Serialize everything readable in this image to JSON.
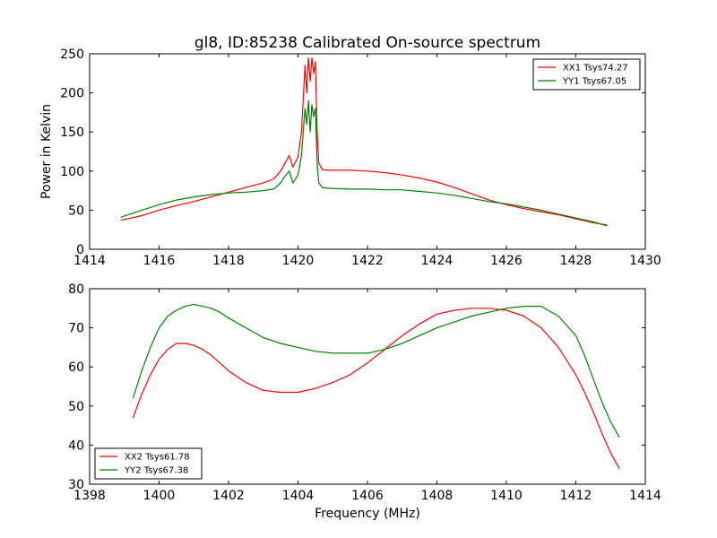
{
  "chart_data": [
    {
      "type": "line",
      "title": "gl8, ID:85238 Calibrated On-source spectrum",
      "xlabel": "",
      "ylabel": "Power in Kelvin",
      "xlim": [
        1414,
        1430
      ],
      "ylim": [
        0,
        250
      ],
      "xticks": [
        1414,
        1416,
        1418,
        1420,
        1422,
        1424,
        1426,
        1428,
        1430
      ],
      "yticks": [
        0,
        50,
        100,
        150,
        200,
        250
      ],
      "legend_position": "top-right",
      "series": [
        {
          "name": "XX1 Tsys74.27",
          "color": "#ff0000",
          "x": [
            1414.9,
            1415.5,
            1416.0,
            1416.5,
            1417.0,
            1417.5,
            1418.0,
            1418.5,
            1419.0,
            1419.3,
            1419.5,
            1419.6,
            1419.75,
            1419.85,
            1420.0,
            1420.1,
            1420.2,
            1420.25,
            1420.3,
            1420.35,
            1420.4,
            1420.45,
            1420.5,
            1420.55,
            1420.6,
            1420.7,
            1420.9,
            1421.5,
            1422.0,
            1422.5,
            1423.0,
            1423.5,
            1424.0,
            1424.5,
            1425.0,
            1425.5,
            1426.0,
            1426.5,
            1427.0,
            1427.5,
            1428.0,
            1428.5,
            1428.9
          ],
          "y": [
            37,
            43,
            50,
            56,
            61,
            67,
            73,
            79,
            85,
            90,
            100,
            108,
            120,
            105,
            118,
            150,
            235,
            200,
            245,
            215,
            245,
            225,
            240,
            150,
            110,
            102,
            101,
            101,
            100,
            98,
            95,
            91,
            86,
            79,
            71,
            63,
            57,
            52,
            48,
            44,
            39,
            34,
            31
          ]
        },
        {
          "name": "YY1 Tsys67.05",
          "color": "#008000",
          "x": [
            1414.9,
            1415.5,
            1416.0,
            1416.5,
            1417.0,
            1417.5,
            1418.0,
            1418.5,
            1419.0,
            1419.3,
            1419.5,
            1419.6,
            1419.75,
            1419.85,
            1420.0,
            1420.1,
            1420.2,
            1420.25,
            1420.3,
            1420.35,
            1420.4,
            1420.45,
            1420.5,
            1420.55,
            1420.6,
            1420.7,
            1420.9,
            1421.5,
            1422.0,
            1422.5,
            1423.0,
            1423.5,
            1424.0,
            1424.5,
            1425.0,
            1425.5,
            1426.0,
            1426.5,
            1427.0,
            1427.5,
            1428.0,
            1428.5,
            1428.9
          ],
          "y": [
            41,
            50,
            57,
            63,
            67,
            70,
            72,
            73,
            75,
            77,
            85,
            92,
            100,
            85,
            95,
            120,
            180,
            160,
            190,
            150,
            185,
            170,
            180,
            110,
            85,
            79,
            78,
            77,
            77,
            76,
            76,
            74,
            72,
            69,
            65,
            61,
            58,
            54,
            50,
            45,
            40,
            35,
            30
          ]
        }
      ]
    },
    {
      "type": "line",
      "title": "",
      "xlabel": "Frequency (MHz)",
      "ylabel": "",
      "xlim": [
        1398,
        1414
      ],
      "ylim": [
        30,
        80
      ],
      "xticks": [
        1398,
        1400,
        1402,
        1404,
        1406,
        1408,
        1410,
        1412,
        1414
      ],
      "yticks": [
        30,
        40,
        50,
        60,
        70,
        80
      ],
      "legend_position": "bottom-left",
      "series": [
        {
          "name": "XX2 Tsys61.78",
          "color": "#ff0000",
          "x": [
            1399.25,
            1399.5,
            1399.75,
            1400.0,
            1400.25,
            1400.5,
            1400.75,
            1401.0,
            1401.25,
            1401.5,
            1401.75,
            1402.0,
            1402.5,
            1403.0,
            1403.5,
            1404.0,
            1404.5,
            1405.0,
            1405.5,
            1406.0,
            1406.5,
            1407.0,
            1407.5,
            1408.0,
            1408.5,
            1409.0,
            1409.5,
            1410.0,
            1410.5,
            1411.0,
            1411.5,
            1412.0,
            1412.25,
            1412.5,
            1412.75,
            1413.0,
            1413.25
          ],
          "y": [
            47,
            53,
            58,
            62,
            64.5,
            66,
            66,
            65.5,
            64.5,
            63,
            61,
            59,
            56,
            54,
            53.5,
            53.5,
            54.5,
            56,
            58,
            61,
            64.5,
            68,
            71,
            73.5,
            74.5,
            75,
            75,
            74.5,
            73,
            70,
            65,
            58,
            53.5,
            48.5,
            43,
            38,
            34
          ]
        },
        {
          "name": "YY2 Tsys67.38",
          "color": "#008000",
          "x": [
            1399.25,
            1399.5,
            1399.75,
            1400.0,
            1400.25,
            1400.5,
            1400.75,
            1401.0,
            1401.25,
            1401.5,
            1401.75,
            1402.0,
            1402.5,
            1403.0,
            1403.5,
            1404.0,
            1404.5,
            1405.0,
            1405.5,
            1406.0,
            1406.5,
            1407.0,
            1407.5,
            1408.0,
            1408.5,
            1409.0,
            1409.5,
            1410.0,
            1410.5,
            1411.0,
            1411.5,
            1412.0,
            1412.25,
            1412.5,
            1412.75,
            1413.0,
            1413.25
          ],
          "y": [
            52,
            59,
            65,
            70,
            73,
            74.5,
            75.5,
            76,
            75.5,
            75,
            74,
            72.5,
            70,
            67.5,
            66,
            65,
            64,
            63.5,
            63.5,
            63.5,
            64.5,
            66,
            68,
            70,
            71.5,
            73,
            74,
            75,
            75.5,
            75.5,
            73,
            68,
            63,
            57,
            51,
            46,
            42
          ]
        }
      ]
    }
  ]
}
